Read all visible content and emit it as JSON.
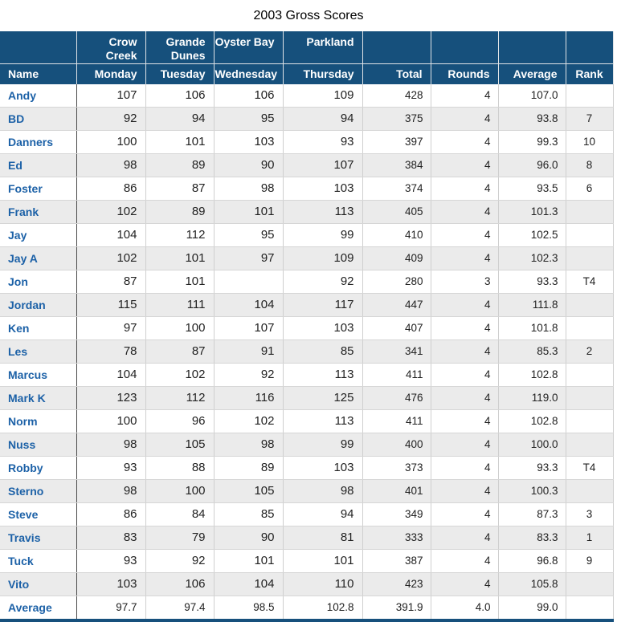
{
  "title": "2003 Gross Scores",
  "colors": {
    "header_bg": "#16507C",
    "link_blue": "#1C61A7",
    "alt_row": "#EBEBEB",
    "grid_line": "#CFCFCF",
    "name_divider": "#4A4A4A",
    "text": "#222222"
  },
  "table": {
    "group_headers": [
      "",
      "Crow\nCreek",
      "Grande\nDunes",
      "Oyster Bay",
      "Parkland",
      "",
      "",
      "",
      ""
    ],
    "columns": [
      "Name",
      "Monday",
      "Tuesday",
      "Wednesday",
      "Thursday",
      "Total",
      "Rounds",
      "Average",
      "Rank"
    ],
    "rows": [
      [
        "Andy",
        "107",
        "106",
        "106",
        "109",
        "428",
        "4",
        "107.0",
        ""
      ],
      [
        "BD",
        "92",
        "94",
        "95",
        "94",
        "375",
        "4",
        "93.8",
        "7"
      ],
      [
        "Danners",
        "100",
        "101",
        "103",
        "93",
        "397",
        "4",
        "99.3",
        "10"
      ],
      [
        "Ed",
        "98",
        "89",
        "90",
        "107",
        "384",
        "4",
        "96.0",
        "8"
      ],
      [
        "Foster",
        "86",
        "87",
        "98",
        "103",
        "374",
        "4",
        "93.5",
        "6"
      ],
      [
        "Frank",
        "102",
        "89",
        "101",
        "113",
        "405",
        "4",
        "101.3",
        ""
      ],
      [
        "Jay",
        "104",
        "112",
        "95",
        "99",
        "410",
        "4",
        "102.5",
        ""
      ],
      [
        "Jay A",
        "102",
        "101",
        "97",
        "109",
        "409",
        "4",
        "102.3",
        ""
      ],
      [
        "Jon",
        "87",
        "101",
        "",
        "92",
        "280",
        "3",
        "93.3",
        "T4"
      ],
      [
        "Jordan",
        "115",
        "111",
        "104",
        "117",
        "447",
        "4",
        "111.8",
        ""
      ],
      [
        "Ken",
        "97",
        "100",
        "107",
        "103",
        "407",
        "4",
        "101.8",
        ""
      ],
      [
        "Les",
        "78",
        "87",
        "91",
        "85",
        "341",
        "4",
        "85.3",
        "2"
      ],
      [
        "Marcus",
        "104",
        "102",
        "92",
        "113",
        "411",
        "4",
        "102.8",
        ""
      ],
      [
        "Mark K",
        "123",
        "112",
        "116",
        "125",
        "476",
        "4",
        "119.0",
        ""
      ],
      [
        "Norm",
        "100",
        "96",
        "102",
        "113",
        "411",
        "4",
        "102.8",
        ""
      ],
      [
        "Nuss",
        "98",
        "105",
        "98",
        "99",
        "400",
        "4",
        "100.0",
        ""
      ],
      [
        "Robby",
        "93",
        "88",
        "89",
        "103",
        "373",
        "4",
        "93.3",
        "T4"
      ],
      [
        "Sterno",
        "98",
        "100",
        "105",
        "98",
        "401",
        "4",
        "100.3",
        ""
      ],
      [
        "Steve",
        "86",
        "84",
        "85",
        "94",
        "349",
        "4",
        "87.3",
        "3"
      ],
      [
        "Travis",
        "83",
        "79",
        "90",
        "81",
        "333",
        "4",
        "83.3",
        "1"
      ],
      [
        "Tuck",
        "93",
        "92",
        "101",
        "101",
        "387",
        "4",
        "96.8",
        "9"
      ],
      [
        "Vito",
        "103",
        "106",
        "104",
        "110",
        "423",
        "4",
        "105.8",
        ""
      ]
    ],
    "average_row": [
      "Average",
      "97.7",
      "97.4",
      "98.5",
      "102.8",
      "391.9",
      "4.0",
      "99.0",
      ""
    ]
  }
}
